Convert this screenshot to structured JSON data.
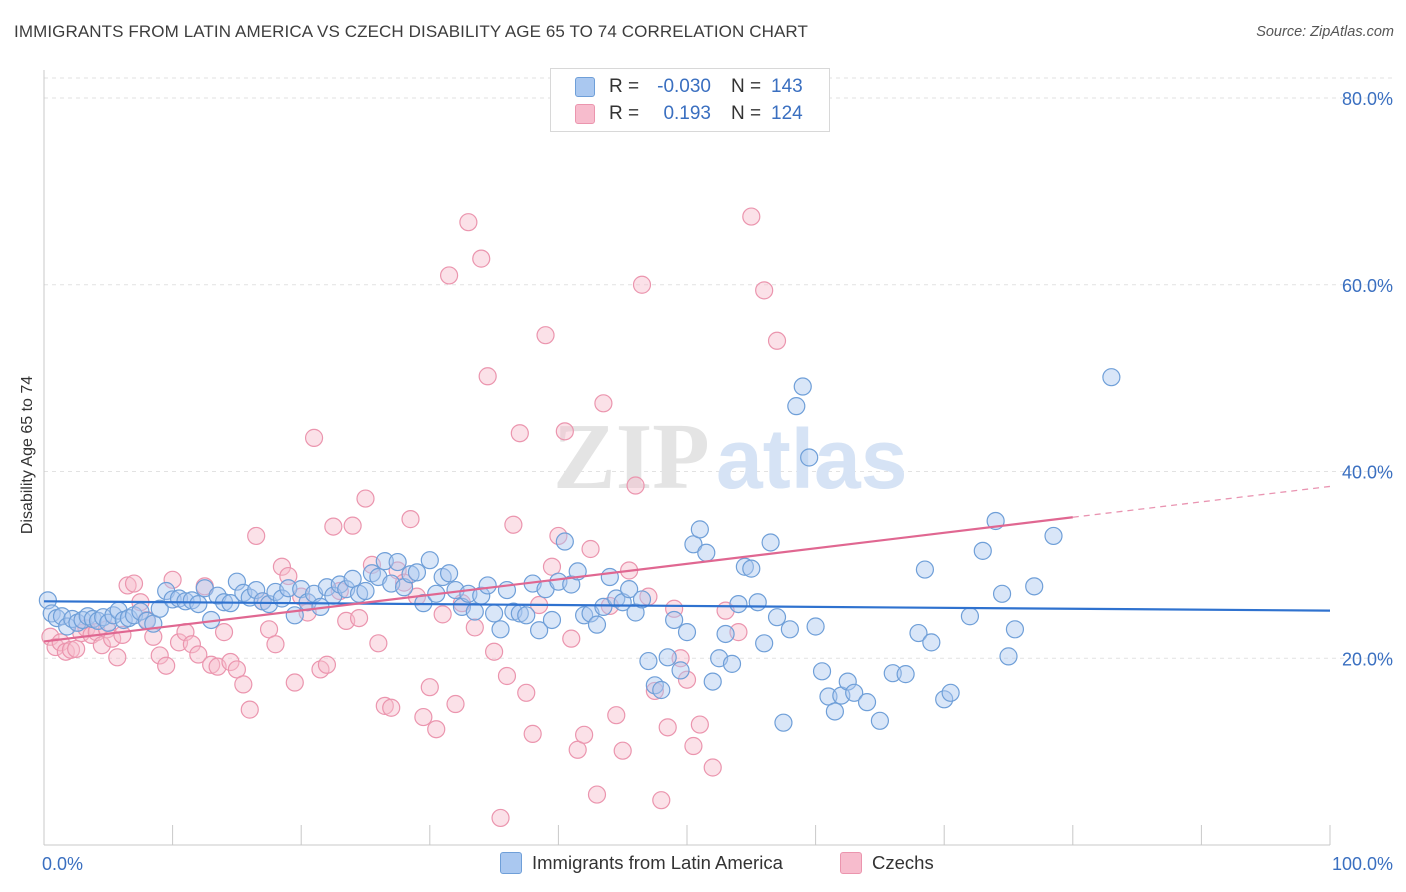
{
  "header": {
    "title": "IMMIGRANTS FROM LATIN AMERICA VS CZECH DISABILITY AGE 65 TO 74 CORRELATION CHART",
    "source": "Source: ZipAtlas.com"
  },
  "watermark": {
    "part1": "ZIP",
    "part2": "atlas"
  },
  "legend": {
    "rows": [
      {
        "r_label": "R =",
        "r_value": "-0.030",
        "n_label": "N =",
        "n_value": "143"
      },
      {
        "r_label": "R =",
        "r_value": "0.193",
        "n_label": "N =",
        "n_value": "124"
      }
    ]
  },
  "bottom_legend": {
    "series1": "Immigrants from Latin America",
    "series2": "Czechs"
  },
  "colors": {
    "blue_fill": "#aac8f0",
    "blue_stroke": "#6f9fd8",
    "blue_line": "#2f72cf",
    "pink_fill": "#f7bccd",
    "pink_stroke": "#eb95ae",
    "pink_line": "#e06791",
    "tick_label": "#3a6fc0",
    "grid": "#e2e2e2"
  },
  "chart_data": {
    "type": "scatter",
    "title": "IMMIGRANTS FROM LATIN AMERICA VS CZECH DISABILITY AGE 65 TO 74 CORRELATION CHART",
    "xlabel": "",
    "ylabel": "Disability Age 65 to 74",
    "xlim": [
      0,
      100
    ],
    "ylim": [
      0,
      80
    ],
    "x_ticks": [
      "0.0%",
      "100.0%"
    ],
    "y_ticks": [
      {
        "value": 20,
        "label": "20.0%"
      },
      {
        "value": 40,
        "label": "40.0%"
      },
      {
        "value": 60,
        "label": "60.0%"
      },
      {
        "value": 80,
        "label": "80.0%"
      }
    ],
    "grid": true,
    "series": [
      {
        "name": "Immigrants from Latin America",
        "color": "#6f9fd8",
        "trend": {
          "x": [
            0,
            100
          ],
          "y": [
            26.1,
            25.1
          ]
        },
        "points": [
          [
            0.3,
            26.2
          ],
          [
            0.6,
            24.8
          ],
          [
            1.0,
            24.3
          ],
          [
            1.4,
            24.5
          ],
          [
            1.8,
            23.4
          ],
          [
            2.2,
            24.2
          ],
          [
            2.6,
            23.8
          ],
          [
            3.0,
            24.1
          ],
          [
            3.4,
            24.5
          ],
          [
            3.8,
            24.2
          ],
          [
            4.2,
            24.0
          ],
          [
            4.6,
            24.4
          ],
          [
            5.0,
            23.8
          ],
          [
            5.4,
            24.6
          ],
          [
            5.8,
            25.1
          ],
          [
            6.2,
            24.1
          ],
          [
            6.6,
            24.3
          ],
          [
            7.0,
            24.6
          ],
          [
            7.5,
            25.0
          ],
          [
            8.0,
            24.0
          ],
          [
            8.5,
            23.7
          ],
          [
            9.0,
            25.3
          ],
          [
            9.5,
            27.2
          ],
          [
            10.0,
            26.3
          ],
          [
            10.5,
            26.4
          ],
          [
            11.0,
            26.1
          ],
          [
            11.5,
            26.2
          ],
          [
            12.0,
            25.8
          ],
          [
            12.5,
            27.5
          ],
          [
            13.0,
            24.1
          ],
          [
            13.5,
            26.7
          ],
          [
            14.0,
            26.0
          ],
          [
            14.5,
            25.9
          ],
          [
            15.0,
            28.2
          ],
          [
            15.5,
            27.0
          ],
          [
            16.0,
            26.5
          ],
          [
            16.5,
            27.3
          ],
          [
            17.0,
            26.1
          ],
          [
            17.5,
            25.8
          ],
          [
            18.0,
            27.1
          ],
          [
            18.5,
            26.4
          ],
          [
            19.0,
            27.5
          ],
          [
            19.5,
            24.6
          ],
          [
            20.0,
            27.4
          ],
          [
            20.5,
            26.0
          ],
          [
            21.0,
            26.9
          ],
          [
            21.5,
            25.5
          ],
          [
            22.0,
            27.6
          ],
          [
            22.5,
            26.7
          ],
          [
            23.0,
            27.9
          ],
          [
            23.5,
            27.4
          ],
          [
            24.0,
            28.5
          ],
          [
            24.5,
            26.9
          ],
          [
            25.0,
            27.2
          ],
          [
            25.5,
            29.1
          ],
          [
            26.0,
            28.7
          ],
          [
            26.5,
            30.4
          ],
          [
            27.0,
            28.0
          ],
          [
            27.5,
            30.3
          ],
          [
            28.0,
            27.6
          ],
          [
            28.5,
            29.0
          ],
          [
            29.0,
            29.2
          ],
          [
            29.5,
            25.9
          ],
          [
            30.0,
            30.5
          ],
          [
            30.5,
            26.9
          ],
          [
            31.0,
            28.7
          ],
          [
            31.5,
            29.1
          ],
          [
            32.0,
            27.3
          ],
          [
            32.5,
            25.5
          ],
          [
            33.0,
            26.9
          ],
          [
            33.5,
            25.0
          ],
          [
            34.0,
            26.7
          ],
          [
            34.5,
            27.8
          ],
          [
            35.0,
            24.8
          ],
          [
            35.5,
            23.1
          ],
          [
            36.0,
            27.3
          ],
          [
            36.5,
            25.0
          ],
          [
            37.0,
            24.8
          ],
          [
            37.5,
            24.6
          ],
          [
            38.0,
            28.0
          ],
          [
            38.5,
            23.0
          ],
          [
            39.0,
            27.4
          ],
          [
            39.5,
            24.1
          ],
          [
            40.0,
            28.2
          ],
          [
            40.5,
            32.5
          ],
          [
            41.0,
            27.9
          ],
          [
            41.5,
            29.3
          ],
          [
            42.0,
            24.6
          ],
          [
            42.5,
            24.8
          ],
          [
            43.0,
            23.6
          ],
          [
            43.5,
            25.5
          ],
          [
            44.0,
            28.7
          ],
          [
            44.5,
            26.4
          ],
          [
            45.0,
            26.0
          ],
          [
            45.5,
            27.4
          ],
          [
            46.0,
            24.9
          ],
          [
            46.5,
            26.3
          ],
          [
            47.0,
            19.7
          ],
          [
            47.5,
            17.1
          ],
          [
            48.0,
            16.6
          ],
          [
            48.5,
            20.1
          ],
          [
            49.0,
            24.1
          ],
          [
            49.5,
            18.7
          ],
          [
            50.0,
            22.8
          ],
          [
            50.5,
            32.2
          ],
          [
            51.0,
            33.8
          ],
          [
            51.5,
            31.3
          ],
          [
            52.0,
            17.5
          ],
          [
            52.5,
            20.0
          ],
          [
            53.0,
            22.6
          ],
          [
            53.5,
            19.4
          ],
          [
            54.0,
            25.8
          ],
          [
            54.5,
            29.8
          ],
          [
            55.0,
            29.6
          ],
          [
            55.5,
            26.0
          ],
          [
            56.0,
            21.6
          ],
          [
            56.5,
            32.4
          ],
          [
            57.0,
            24.4
          ],
          [
            57.5,
            13.1
          ],
          [
            58.0,
            23.1
          ],
          [
            58.5,
            47.0
          ],
          [
            59.0,
            49.1
          ],
          [
            59.5,
            41.5
          ],
          [
            60.0,
            23.4
          ],
          [
            60.5,
            18.6
          ],
          [
            61.0,
            15.9
          ],
          [
            61.5,
            14.3
          ],
          [
            62.0,
            16.0
          ],
          [
            62.5,
            17.5
          ],
          [
            63.0,
            16.3
          ],
          [
            64.0,
            15.3
          ],
          [
            65.0,
            13.3
          ],
          [
            66.0,
            18.4
          ],
          [
            67.0,
            18.3
          ],
          [
            68.0,
            22.7
          ],
          [
            68.5,
            29.5
          ],
          [
            69.0,
            21.7
          ],
          [
            70.0,
            15.6
          ],
          [
            70.5,
            16.3
          ],
          [
            72.0,
            24.5
          ],
          [
            73.0,
            31.5
          ],
          [
            74.0,
            34.7
          ],
          [
            74.5,
            26.9
          ],
          [
            75.0,
            20.2
          ],
          [
            75.5,
            23.1
          ],
          [
            77.0,
            27.7
          ],
          [
            78.5,
            33.1
          ],
          [
            83.0,
            50.1
          ]
        ]
      },
      {
        "name": "Czechs",
        "color": "#eb95ae",
        "trend": {
          "x": [
            0,
            80
          ],
          "y": [
            21.8,
            35.1
          ]
        },
        "trend_ext": {
          "x": [
            80,
            100
          ],
          "y": [
            35.1,
            38.4
          ]
        },
        "points": [
          [
            0.5,
            22.3
          ],
          [
            0.9,
            21.2
          ],
          [
            1.3,
            21.7
          ],
          [
            1.7,
            20.7
          ],
          [
            2.1,
            20.9
          ],
          [
            2.5,
            21.0
          ],
          [
            2.9,
            22.7
          ],
          [
            3.3,
            23.2
          ],
          [
            3.7,
            22.5
          ],
          [
            4.1,
            22.8
          ],
          [
            4.5,
            21.4
          ],
          [
            4.9,
            23.1
          ],
          [
            5.3,
            22.1
          ],
          [
            5.7,
            20.1
          ],
          [
            6.1,
            22.5
          ],
          [
            6.5,
            27.8
          ],
          [
            7.0,
            28.0
          ],
          [
            7.5,
            26.0
          ],
          [
            8.0,
            24.1
          ],
          [
            8.5,
            22.3
          ],
          [
            9.0,
            20.3
          ],
          [
            9.5,
            19.2
          ],
          [
            10.0,
            28.4
          ],
          [
            10.5,
            21.7
          ],
          [
            11.0,
            22.8
          ],
          [
            11.5,
            21.5
          ],
          [
            12.0,
            20.4
          ],
          [
            12.5,
            27.7
          ],
          [
            13.0,
            19.3
          ],
          [
            13.5,
            19.1
          ],
          [
            14.0,
            22.8
          ],
          [
            14.5,
            19.6
          ],
          [
            15.0,
            18.8
          ],
          [
            15.5,
            17.2
          ],
          [
            16.0,
            14.5
          ],
          [
            16.5,
            33.1
          ],
          [
            17.0,
            26.1
          ],
          [
            17.5,
            23.1
          ],
          [
            18.0,
            21.5
          ],
          [
            18.5,
            29.8
          ],
          [
            19.0,
            28.8
          ],
          [
            19.5,
            17.4
          ],
          [
            20.0,
            26.6
          ],
          [
            20.5,
            24.9
          ],
          [
            21.0,
            43.6
          ],
          [
            21.5,
            18.8
          ],
          [
            22.0,
            19.3
          ],
          [
            22.5,
            34.1
          ],
          [
            23.0,
            27.2
          ],
          [
            23.5,
            24.0
          ],
          [
            24.0,
            34.2
          ],
          [
            24.5,
            24.3
          ],
          [
            25.0,
            37.1
          ],
          [
            25.5,
            30.0
          ],
          [
            26.0,
            21.6
          ],
          [
            26.5,
            14.9
          ],
          [
            27.0,
            14.7
          ],
          [
            27.5,
            29.4
          ],
          [
            28.0,
            28.1
          ],
          [
            28.5,
            34.9
          ],
          [
            29.0,
            26.6
          ],
          [
            29.5,
            13.7
          ],
          [
            30.0,
            16.9
          ],
          [
            30.5,
            12.4
          ],
          [
            31.0,
            24.7
          ],
          [
            31.5,
            61.0
          ],
          [
            32.0,
            15.1
          ],
          [
            32.5,
            25.9
          ],
          [
            33.0,
            66.7
          ],
          [
            33.5,
            23.3
          ],
          [
            34.0,
            62.8
          ],
          [
            34.5,
            50.2
          ],
          [
            35.0,
            20.7
          ],
          [
            35.5,
            2.9
          ],
          [
            36.0,
            18.1
          ],
          [
            36.5,
            34.3
          ],
          [
            37.0,
            44.1
          ],
          [
            37.5,
            16.3
          ],
          [
            38.0,
            11.9
          ],
          [
            38.5,
            25.7
          ],
          [
            39.0,
            54.6
          ],
          [
            39.5,
            29.8
          ],
          [
            40.0,
            33.1
          ],
          [
            40.5,
            44.3
          ],
          [
            41.0,
            22.1
          ],
          [
            41.5,
            10.2
          ],
          [
            42.0,
            11.8
          ],
          [
            42.5,
            31.7
          ],
          [
            43.0,
            5.4
          ],
          [
            43.5,
            47.3
          ],
          [
            44.0,
            25.6
          ],
          [
            44.5,
            13.9
          ],
          [
            45.0,
            10.1
          ],
          [
            45.5,
            29.4
          ],
          [
            46.0,
            38.5
          ],
          [
            46.5,
            60.0
          ],
          [
            47.0,
            26.6
          ],
          [
            47.5,
            16.5
          ],
          [
            48.0,
            4.8
          ],
          [
            48.5,
            12.6
          ],
          [
            49.0,
            25.3
          ],
          [
            49.5,
            20.0
          ],
          [
            50.0,
            17.7
          ],
          [
            50.5,
            10.6
          ],
          [
            51.0,
            12.9
          ],
          [
            52.0,
            8.3
          ],
          [
            53.0,
            25.1
          ],
          [
            54.0,
            22.8
          ],
          [
            55.0,
            67.3
          ],
          [
            56.0,
            59.4
          ],
          [
            57.0,
            54.0
          ]
        ]
      }
    ]
  }
}
